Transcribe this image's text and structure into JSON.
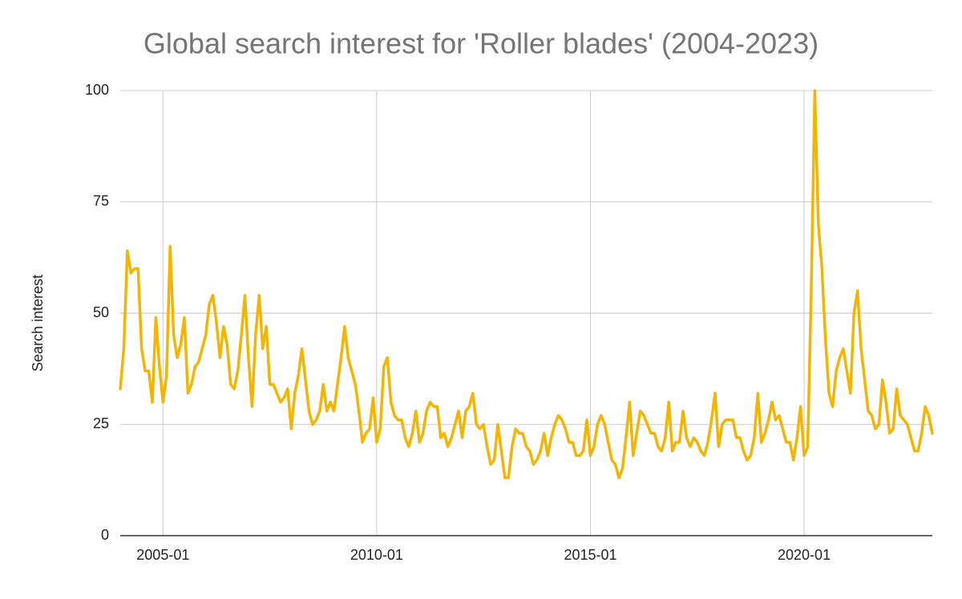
{
  "chart_data": {
    "type": "line",
    "title": "Global search interest for 'Roller blades' (2004-2023)",
    "y_label": "Search interest",
    "x": [
      "2004-01",
      "2004-02",
      "2004-03",
      "2004-04",
      "2004-05",
      "2004-06",
      "2004-07",
      "2004-08",
      "2004-09",
      "2004-10",
      "2004-11",
      "2004-12",
      "2005-01",
      "2005-02",
      "2005-03",
      "2005-04",
      "2005-05",
      "2005-06",
      "2005-07",
      "2005-08",
      "2005-09",
      "2005-10",
      "2005-11",
      "2005-12",
      "2006-01",
      "2006-02",
      "2006-03",
      "2006-04",
      "2006-05",
      "2006-06",
      "2006-07",
      "2006-08",
      "2006-09",
      "2006-10",
      "2006-11",
      "2006-12",
      "2007-01",
      "2007-02",
      "2007-03",
      "2007-04",
      "2007-05",
      "2007-06",
      "2007-07",
      "2007-08",
      "2007-09",
      "2007-10",
      "2007-11",
      "2007-12",
      "2008-01",
      "2008-02",
      "2008-03",
      "2008-04",
      "2008-05",
      "2008-06",
      "2008-07",
      "2008-08",
      "2008-09",
      "2008-10",
      "2008-11",
      "2008-12",
      "2009-01",
      "2009-02",
      "2009-03",
      "2009-04",
      "2009-05",
      "2009-06",
      "2009-07",
      "2009-08",
      "2009-09",
      "2009-10",
      "2009-11",
      "2009-12",
      "2010-01",
      "2010-02",
      "2010-03",
      "2010-04",
      "2010-05",
      "2010-06",
      "2010-07",
      "2010-08",
      "2010-09",
      "2010-10",
      "2010-11",
      "2010-12",
      "2011-01",
      "2011-02",
      "2011-03",
      "2011-04",
      "2011-05",
      "2011-06",
      "2011-07",
      "2011-08",
      "2011-09",
      "2011-10",
      "2011-11",
      "2011-12",
      "2012-01",
      "2012-02",
      "2012-03",
      "2012-04",
      "2012-05",
      "2012-06",
      "2012-07",
      "2012-08",
      "2012-09",
      "2012-10",
      "2012-11",
      "2012-12",
      "2013-01",
      "2013-02",
      "2013-03",
      "2013-04",
      "2013-05",
      "2013-06",
      "2013-07",
      "2013-08",
      "2013-09",
      "2013-10",
      "2013-11",
      "2013-12",
      "2014-01",
      "2014-02",
      "2014-03",
      "2014-04",
      "2014-05",
      "2014-06",
      "2014-07",
      "2014-08",
      "2014-09",
      "2014-10",
      "2014-11",
      "2014-12",
      "2015-01",
      "2015-02",
      "2015-03",
      "2015-04",
      "2015-05",
      "2015-06",
      "2015-07",
      "2015-08",
      "2015-09",
      "2015-10",
      "2015-11",
      "2015-12",
      "2016-01",
      "2016-02",
      "2016-03",
      "2016-04",
      "2016-05",
      "2016-06",
      "2016-07",
      "2016-08",
      "2016-09",
      "2016-10",
      "2016-11",
      "2016-12",
      "2017-01",
      "2017-02",
      "2017-03",
      "2017-04",
      "2017-05",
      "2017-06",
      "2017-07",
      "2017-08",
      "2017-09",
      "2017-10",
      "2017-11",
      "2017-12",
      "2018-01",
      "2018-02",
      "2018-03",
      "2018-04",
      "2018-05",
      "2018-06",
      "2018-07",
      "2018-08",
      "2018-09",
      "2018-10",
      "2018-11",
      "2018-12",
      "2019-01",
      "2019-02",
      "2019-03",
      "2019-04",
      "2019-05",
      "2019-06",
      "2019-07",
      "2019-08",
      "2019-09",
      "2019-10",
      "2019-11",
      "2019-12",
      "2020-01",
      "2020-02",
      "2020-03",
      "2020-04",
      "2020-05",
      "2020-06",
      "2020-07",
      "2020-08",
      "2020-09",
      "2020-10",
      "2020-11",
      "2020-12",
      "2021-01",
      "2021-02",
      "2021-03",
      "2021-04",
      "2021-05",
      "2021-06",
      "2021-07",
      "2021-08",
      "2021-09",
      "2021-10",
      "2021-11",
      "2021-12",
      "2022-01",
      "2022-02",
      "2022-03",
      "2022-04",
      "2022-05",
      "2022-06",
      "2022-07",
      "2022-08",
      "2022-09",
      "2022-10",
      "2022-11",
      "2022-12",
      "2023-01"
    ],
    "values": [
      33,
      42,
      64,
      59,
      60,
      60,
      42,
      37,
      37,
      30,
      49,
      38,
      30,
      36,
      65,
      45,
      40,
      43,
      49,
      32,
      34,
      38,
      39,
      42,
      45,
      52,
      54,
      48,
      40,
      47,
      43,
      34,
      33,
      37,
      45,
      54,
      40,
      29,
      45,
      54,
      42,
      47,
      34,
      34,
      32,
      30,
      31,
      33,
      24,
      32,
      36,
      42,
      35,
      28,
      25,
      26,
      28,
      34,
      28,
      30,
      28,
      34,
      40,
      47,
      40,
      37,
      34,
      28,
      21,
      23,
      24,
      31,
      21,
      24,
      38,
      40,
      30,
      27,
      26,
      26,
      22,
      20,
      23,
      28,
      21,
      23,
      28,
      30,
      29,
      29,
      22,
      23,
      20,
      22,
      25,
      28,
      22,
      28,
      29,
      32,
      25,
      24,
      25,
      20,
      16,
      17,
      25,
      19,
      13,
      13,
      20,
      24,
      23,
      23,
      20,
      19,
      16,
      17,
      19,
      23,
      18,
      22,
      25,
      27,
      26,
      24,
      21,
      21,
      18,
      18,
      19,
      26,
      18,
      20,
      25,
      27,
      25,
      21,
      17,
      16,
      13,
      15,
      22,
      30,
      18,
      23,
      28,
      27,
      25,
      23,
      23,
      20,
      19,
      22,
      30,
      19,
      21,
      21,
      28,
      22,
      20,
      22,
      21,
      19,
      18,
      21,
      26,
      32,
      20,
      25,
      26,
      26,
      26,
      22,
      22,
      19,
      17,
      18,
      22,
      32,
      21,
      23,
      26,
      30,
      26,
      27,
      24,
      21,
      21,
      17,
      22,
      29,
      18,
      20,
      55,
      100,
      70,
      60,
      44,
      32,
      29,
      37,
      40,
      42,
      37,
      32,
      50,
      55,
      42,
      35,
      28,
      27,
      24,
      25,
      35,
      30,
      23,
      24,
      33,
      27,
      26,
      25,
      22,
      19,
      19,
      23,
      29,
      27,
      23
    ],
    "color": "#f4b400",
    "xlim": [
      "2004-01",
      "2023-01"
    ],
    "xticks": [
      "2005-01",
      "2010-01",
      "2015-01",
      "2020-01"
    ],
    "ylim": [
      0,
      100
    ],
    "yticks": [
      0,
      25,
      50,
      75,
      100
    ],
    "grid": true
  }
}
